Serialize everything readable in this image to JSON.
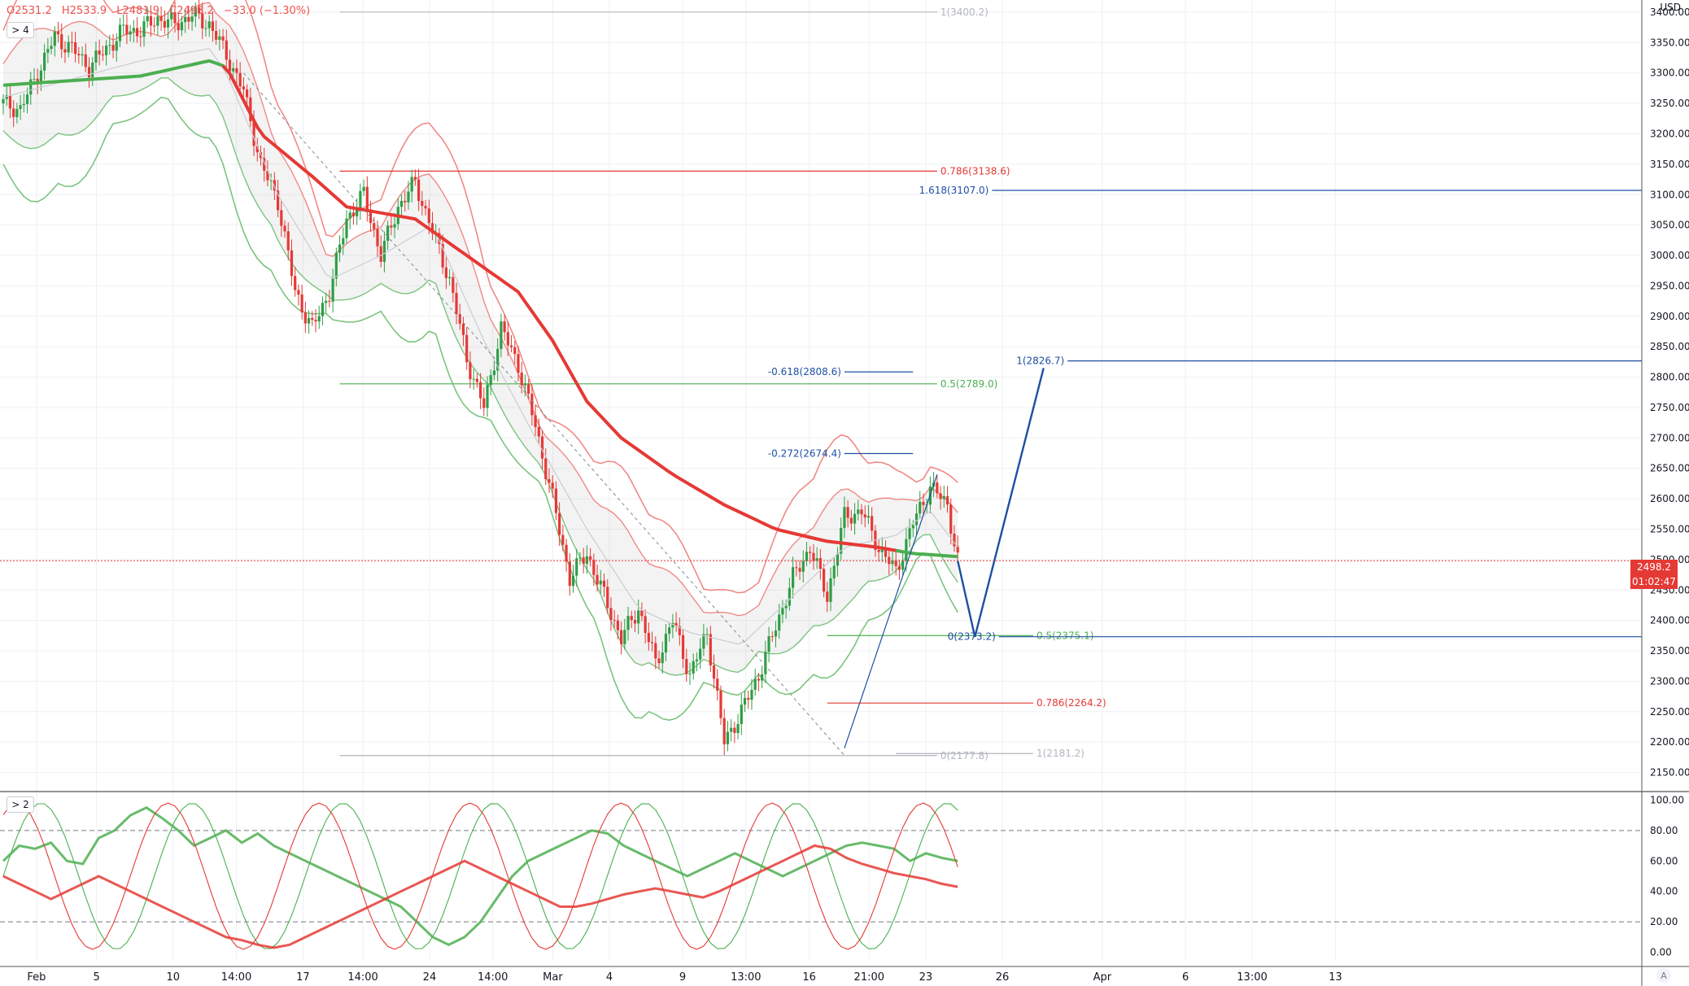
{
  "header": {
    "open": "O2531.2",
    "high": "H2533.9",
    "low": "L2481.9",
    "close": "C2498.2",
    "change": "−33.0 (−1.30%)",
    "main_pane_button": "> 4",
    "osc_pane_button": "> 2",
    "currency": "USD",
    "auto_button": "A"
  },
  "current_price": {
    "value": "2498.2",
    "countdown": "01:02:47"
  },
  "colors": {
    "up": "#2e9e45",
    "down": "#e53935",
    "ma_red": "#e53935",
    "ma_green": "#4caf50",
    "band_red": "#f08a86",
    "band_green": "#7cc47f",
    "fib_blue": "#1e4fa3",
    "grid": "#eef0f3"
  },
  "chart_data": [
    {
      "type": "candlestick",
      "title": "",
      "ylim": [
        2120,
        3420
      ],
      "y_ticks": [
        "3400.00",
        "3350.00",
        "3300.00",
        "3250.00",
        "3200.00",
        "3150.00",
        "3100.00",
        "3050.00",
        "3000.00",
        "2950.00",
        "2900.00",
        "2850.00",
        "2800.00",
        "2750.00",
        "2700.00",
        "2650.00",
        "2600.00",
        "2550.00",
        "2500.00",
        "2450.00",
        "2400.00",
        "2350.00",
        "2300.00",
        "2250.00",
        "2200.00",
        "2150.00"
      ],
      "x_ticks": [
        "Feb",
        "5",
        "10",
        "14:00",
        "17",
        "14:00",
        "24",
        "14:00",
        "Mar",
        "4",
        "9",
        "13:00",
        "16",
        "21:00",
        "23",
        "26",
        "Apr",
        "6",
        "13:00",
        "13"
      ],
      "candle_path": [
        [
          0,
          3250
        ],
        [
          5,
          3240
        ],
        [
          10,
          3300
        ],
        [
          15,
          3360
        ],
        [
          20,
          3340
        ],
        [
          25,
          3310
        ],
        [
          30,
          3340
        ],
        [
          35,
          3370
        ],
        [
          40,
          3370
        ],
        [
          45,
          3390
        ],
        [
          50,
          3380
        ],
        [
          55,
          3395
        ],
        [
          60,
          3380
        ],
        [
          65,
          3330
        ],
        [
          70,
          3270
        ],
        [
          75,
          3150
        ],
        [
          80,
          3090
        ],
        [
          85,
          2940
        ],
        [
          90,
          2880
        ],
        [
          95,
          2940
        ],
        [
          100,
          3060
        ],
        [
          105,
          3100
        ],
        [
          110,
          3000
        ],
        [
          115,
          3080
        ],
        [
          120,
          3120
        ],
        [
          125,
          3040
        ],
        [
          130,
          2960
        ],
        [
          135,
          2830
        ],
        [
          140,
          2750
        ],
        [
          145,
          2880
        ],
        [
          150,
          2820
        ],
        [
          155,
          2720
        ],
        [
          160,
          2600
        ],
        [
          165,
          2470
        ],
        [
          170,
          2510
        ],
        [
          175,
          2440
        ],
        [
          180,
          2370
        ],
        [
          185,
          2420
        ],
        [
          190,
          2330
        ],
        [
          195,
          2400
        ],
        [
          200,
          2310
        ],
        [
          205,
          2380
        ],
        [
          210,
          2200
        ],
        [
          215,
          2250
        ],
        [
          220,
          2310
        ],
        [
          225,
          2390
        ],
        [
          230,
          2470
        ],
        [
          235,
          2520
        ],
        [
          240,
          2440
        ],
        [
          245,
          2570
        ],
        [
          250,
          2580
        ],
        [
          255,
          2520
        ],
        [
          260,
          2480
        ],
        [
          265,
          2560
        ],
        [
          270,
          2620
        ],
        [
          275,
          2590
        ],
        [
          278,
          2498
        ]
      ],
      "ma_slow_points": [
        [
          0,
          3280
        ],
        [
          40,
          3295
        ],
        [
          60,
          3320
        ],
        [
          65,
          3310
        ],
        [
          75,
          3200
        ],
        [
          90,
          3130
        ],
        [
          100,
          3080
        ],
        [
          120,
          3060
        ],
        [
          135,
          3000
        ],
        [
          150,
          2940
        ],
        [
          160,
          2860
        ],
        [
          170,
          2760
        ],
        [
          180,
          2700
        ],
        [
          195,
          2640
        ],
        [
          210,
          2590
        ],
        [
          225,
          2550
        ],
        [
          240,
          2530
        ],
        [
          255,
          2520
        ],
        [
          265,
          2510
        ],
        [
          278,
          2505
        ]
      ],
      "ma_fast_points": [
        [
          0,
          3260
        ],
        [
          40,
          3320
        ],
        [
          60,
          3340
        ],
        [
          65,
          3300
        ],
        [
          80,
          3100
        ],
        [
          95,
          2960
        ],
        [
          110,
          3000
        ],
        [
          125,
          3050
        ],
        [
          140,
          2860
        ],
        [
          155,
          2700
        ],
        [
          170,
          2550
        ],
        [
          185,
          2420
        ],
        [
          200,
          2380
        ],
        [
          215,
          2360
        ],
        [
          230,
          2440
        ],
        [
          245,
          2520
        ],
        [
          260,
          2540
        ],
        [
          270,
          2580
        ],
        [
          278,
          2520
        ]
      ],
      "fib_retracements": [
        {
          "label": "1(3400.2)",
          "value": 3400.2,
          "color": "#b2b5be"
        },
        {
          "label": "0.786(3138.6)",
          "value": 3138.6,
          "color": "#e53935"
        },
        {
          "label": "0.5(2789.0)",
          "value": 2789.0,
          "color": "#4caf50"
        },
        {
          "label": "0.5(2375.1)",
          "value": 2375.1,
          "color": "#4caf50"
        },
        {
          "label": "0.786(2264.2)",
          "value": 2264.2,
          "color": "#e53935"
        },
        {
          "label": "0(2177.8)",
          "value": 2177.8,
          "color": "#b2b5be"
        },
        {
          "label": "1(2181.2)",
          "value": 2181.2,
          "color": "#b2b5be"
        }
      ],
      "fib_extensions": [
        {
          "label": "1.618(3107.0)",
          "value": 3107.0
        },
        {
          "label": "1(2826.7)",
          "value": 2826.7
        },
        {
          "label": "-0.618(2808.6)",
          "value": 2808.6
        },
        {
          "label": "-0.272(2674.4)",
          "value": 2674.4
        },
        {
          "label": "0(2373.2)",
          "value": 2373.2
        }
      ],
      "projection_path": [
        [
          278,
          2498
        ],
        [
          283,
          2373
        ],
        [
          303,
          2815
        ]
      ]
    },
    {
      "type": "line",
      "title": "",
      "ylim": [
        -5,
        105
      ],
      "y_ticks": [
        "100.00",
        "80.00",
        "60.00",
        "40.00",
        "20.00",
        "0.00"
      ],
      "levels": [
        80,
        20
      ],
      "series": [
        {
          "color": "#4caf50",
          "values": [
            60,
            70,
            68,
            72,
            60,
            58,
            75,
            80,
            90,
            95,
            88,
            80,
            70,
            75,
            80,
            72,
            78,
            70,
            65,
            60,
            55,
            50,
            45,
            40,
            35,
            30,
            20,
            10,
            5,
            10,
            20,
            35,
            50,
            60,
            65,
            70,
            75,
            80,
            78,
            70,
            65,
            60,
            55,
            50,
            55,
            60,
            65,
            60,
            55,
            50,
            55,
            60,
            65,
            70,
            72,
            70,
            68,
            60,
            65,
            62,
            60
          ]
        },
        {
          "color": "#e53935",
          "values": [
            50,
            45,
            40,
            35,
            40,
            45,
            50,
            45,
            40,
            35,
            30,
            25,
            20,
            15,
            10,
            8,
            5,
            3,
            5,
            10,
            15,
            20,
            25,
            30,
            35,
            40,
            45,
            50,
            55,
            60,
            55,
            50,
            45,
            40,
            35,
            30,
            30,
            32,
            35,
            38,
            40,
            42,
            40,
            38,
            36,
            40,
            45,
            50,
            55,
            60,
            65,
            70,
            68,
            62,
            58,
            55,
            52,
            50,
            48,
            45,
            43
          ]
        }
      ]
    }
  ]
}
